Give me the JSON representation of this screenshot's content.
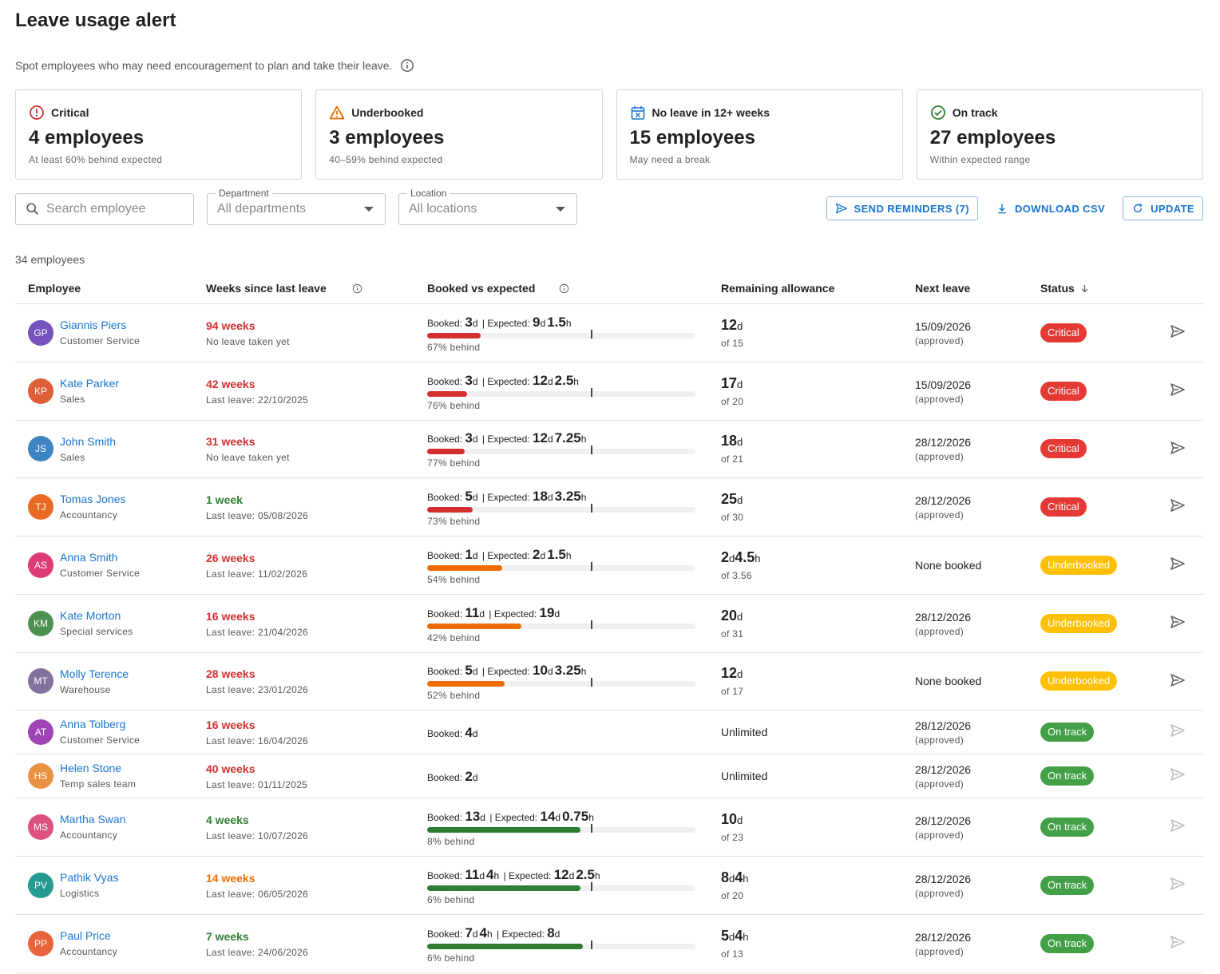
{
  "title": "Leave usage alert",
  "subtitle": "Spot employees who may need encouragement to plan and take their leave.",
  "cards": [
    {
      "label": "Critical",
      "value": "4 employees",
      "desc": "At least 60% behind expected",
      "icon": "alert-circle-icon",
      "color": "#d32f2f"
    },
    {
      "label": "Underbooked",
      "value": "3 employees",
      "desc": "40–59% behind expected",
      "icon": "warning-triangle-icon",
      "color": "#ef6c00"
    },
    {
      "label": "No leave in 12+ weeks",
      "value": "15 employees",
      "desc": "May need a break",
      "icon": "calendar-x-icon",
      "color": "#1976d2"
    },
    {
      "label": "On track",
      "value": "27 employees",
      "desc": "Within expected range",
      "icon": "check-circle-icon",
      "color": "#2e7d32"
    }
  ],
  "filters": {
    "search_placeholder": "Search employee",
    "department_label": "Department",
    "department_value": "All departments",
    "location_label": "Location",
    "location_value": "All locations"
  },
  "actions": {
    "send": "SEND REMINDERS (7)",
    "download": "DOWNLOAD CSV",
    "update": "UPDATE"
  },
  "count": "34 employees",
  "columns": [
    "Employee",
    "Weeks since last leave",
    "Booked vs expected",
    "Remaining allowance",
    "Next leave",
    "Status"
  ],
  "status_colors": {
    "Critical": "#e53935",
    "Underbooked": "#ffc107",
    "On track": "#43a047"
  },
  "rows": [
    {
      "initials": "GP",
      "avatar": "#5e35b1",
      "name": "Giannis Piers",
      "dept": "Customer Service",
      "weeks": "94 weeks",
      "wc": "red",
      "last": "No leave taken yet",
      "booked": [
        [
          "3",
          "d"
        ]
      ],
      "expected": [
        [
          "9",
          "d"
        ],
        [
          "1.5",
          "h"
        ]
      ],
      "pct": 0.2,
      "bar": "#d32f2f",
      "behind": "67% behind",
      "remain": [
        [
          "12",
          "d"
        ]
      ],
      "of": "of 15",
      "next": "15/09/2026",
      "next_sub": "(approved)",
      "status": "Critical"
    },
    {
      "initials": "KP",
      "avatar": "#d84315",
      "name": "Kate Parker",
      "dept": "Sales",
      "weeks": "42 weeks",
      "wc": "red",
      "last": "Last leave: 22/10/2025",
      "booked": [
        [
          "3",
          "d"
        ]
      ],
      "expected": [
        [
          "12",
          "d"
        ],
        [
          "2.5",
          "h"
        ]
      ],
      "pct": 0.15,
      "bar": "#d32f2f",
      "behind": "76% behind",
      "remain": [
        [
          "17",
          "d"
        ]
      ],
      "of": "of 20",
      "next": "15/09/2026",
      "next_sub": "(approved)",
      "status": "Critical"
    },
    {
      "initials": "JS",
      "avatar": "#1e6fb8",
      "name": "John Smith",
      "dept": "Sales",
      "weeks": "31 weeks",
      "wc": "red",
      "last": "No leave taken yet",
      "booked": [
        [
          "3",
          "d"
        ]
      ],
      "expected": [
        [
          "12",
          "d"
        ],
        [
          "7.25",
          "h"
        ]
      ],
      "pct": 0.14,
      "bar": "#d32f2f",
      "behind": "77% behind",
      "remain": [
        [
          "18",
          "d"
        ]
      ],
      "of": "of 21",
      "next": "28/12/2026",
      "next_sub": "(approved)",
      "status": "Critical"
    },
    {
      "initials": "TJ",
      "avatar": "#e65100",
      "name": "Tomas Jones",
      "dept": "Accountancy",
      "weeks": "1 week",
      "wc": "green",
      "last": "Last leave: 05/08/2026",
      "booked": [
        [
          "5",
          "d"
        ]
      ],
      "expected": [
        [
          "18",
          "d"
        ],
        [
          "3.25",
          "h"
        ]
      ],
      "pct": 0.17,
      "bar": "#d32f2f",
      "behind": "73% behind",
      "remain": [
        [
          "25",
          "d"
        ]
      ],
      "of": "of 30",
      "next": "28/12/2026",
      "next_sub": "(approved)",
      "status": "Critical"
    },
    {
      "initials": "AS",
      "avatar": "#d81b60",
      "name": "Anna Smith",
      "dept": "Customer Service",
      "weeks": "26 weeks",
      "wc": "red",
      "last": "Last leave: 11/02/2026",
      "booked": [
        [
          "1",
          "d"
        ]
      ],
      "expected": [
        [
          "2",
          "d"
        ],
        [
          "1.5",
          "h"
        ]
      ],
      "pct": 0.28,
      "bar": "#ef6c00",
      "behind": "54% behind",
      "remain": [
        [
          "2",
          "d"
        ],
        [
          "4.5",
          "h"
        ]
      ],
      "of": "of 3.56",
      "next": "None booked",
      "next_sub": "",
      "status": "Underbooked"
    },
    {
      "initials": "KM",
      "avatar": "#2e7d32",
      "name": "Kate Morton",
      "dept": "Special services",
      "weeks": "16 weeks",
      "wc": "red",
      "last": "Last leave: 21/04/2026",
      "booked": [
        [
          "11",
          "d"
        ]
      ],
      "expected": [
        [
          "19",
          "d"
        ]
      ],
      "pct": 0.35,
      "bar": "#ef6c00",
      "behind": "42% behind",
      "remain": [
        [
          "20",
          "d"
        ]
      ],
      "of": "of 31",
      "next": "28/12/2026",
      "next_sub": "(approved)",
      "status": "Underbooked"
    },
    {
      "initials": "MT",
      "avatar": "#6d5a8e",
      "name": "Molly Terence",
      "dept": "Warehouse",
      "weeks": "28 weeks",
      "wc": "red",
      "last": "Last leave: 23/01/2026",
      "booked": [
        [
          "5",
          "d"
        ]
      ],
      "expected": [
        [
          "10",
          "d"
        ],
        [
          "3.25",
          "h"
        ]
      ],
      "pct": 0.29,
      "bar": "#ef6c00",
      "behind": "52% behind",
      "remain": [
        [
          "12",
          "d"
        ]
      ],
      "of": "of 17",
      "next": "None booked",
      "next_sub": "",
      "status": "Underbooked"
    },
    {
      "initials": "AT",
      "avatar": "#8e24aa",
      "name": "Anna Tolberg",
      "dept": "Customer Service",
      "weeks": "16 weeks",
      "wc": "red",
      "last": "Last leave: 16/04/2026",
      "booked": [
        [
          "4",
          "d"
        ]
      ],
      "expected": [],
      "pct": null,
      "bar": "",
      "behind": "",
      "remain_plain": "Unlimited",
      "next": "28/12/2026",
      "next_sub": "(approved)",
      "status": "On track"
    },
    {
      "initials": "HS",
      "avatar": "#e67e22",
      "name": "Helen Stone",
      "dept": "Temp sales team",
      "weeks": "40 weeks",
      "wc": "red",
      "last": "Last leave: 01/11/2025",
      "booked": [
        [
          "2",
          "d"
        ]
      ],
      "expected": [],
      "pct": null,
      "bar": "",
      "behind": "",
      "remain_plain": "Unlimited",
      "next": "28/12/2026",
      "next_sub": "(approved)",
      "status": "On track"
    },
    {
      "initials": "MS",
      "avatar": "#d6336c",
      "name": "Martha Swan",
      "dept": "Accountancy",
      "weeks": "4 weeks",
      "wc": "green",
      "last": "Last leave: 10/07/2026",
      "booked": [
        [
          "13",
          "d"
        ]
      ],
      "expected": [
        [
          "14",
          "d"
        ],
        [
          "0.75",
          "h"
        ]
      ],
      "pct": 0.57,
      "bar": "#2e7d32",
      "behind": "8% behind",
      "remain": [
        [
          "10",
          "d"
        ]
      ],
      "of": "of 23",
      "next": "28/12/2026",
      "next_sub": "(approved)",
      "status": "On track"
    },
    {
      "initials": "PV",
      "avatar": "#00897b",
      "name": "Pathik Vyas",
      "dept": "Logistics",
      "weeks": "14 weeks",
      "wc": "orange",
      "last": "Last leave: 06/05/2026",
      "booked": [
        [
          "11",
          "d"
        ],
        [
          "4",
          "h"
        ]
      ],
      "expected": [
        [
          "12",
          "d"
        ],
        [
          "2.5",
          "h"
        ]
      ],
      "pct": 0.57,
      "bar": "#2e7d32",
      "behind": "6% behind",
      "remain": [
        [
          "8",
          "d"
        ],
        [
          "4",
          "h"
        ]
      ],
      "of": "of 20",
      "next": "28/12/2026",
      "next_sub": "(approved)",
      "status": "On track"
    },
    {
      "initials": "PP",
      "avatar": "#e64a19",
      "name": "Paul Price",
      "dept": "Accountancy",
      "weeks": "7 weeks",
      "wc": "green",
      "last": "Last leave: 24/06/2026",
      "booked": [
        [
          "7",
          "d"
        ],
        [
          "4",
          "h"
        ]
      ],
      "expected": [
        [
          "8",
          "d"
        ]
      ],
      "pct": 0.58,
      "bar": "#2e7d32",
      "behind": "6% behind",
      "remain": [
        [
          "5",
          "d"
        ],
        [
          "4",
          "h"
        ]
      ],
      "of": "of 13",
      "next": "28/12/2026",
      "next_sub": "(approved)",
      "status": "On track"
    }
  ]
}
